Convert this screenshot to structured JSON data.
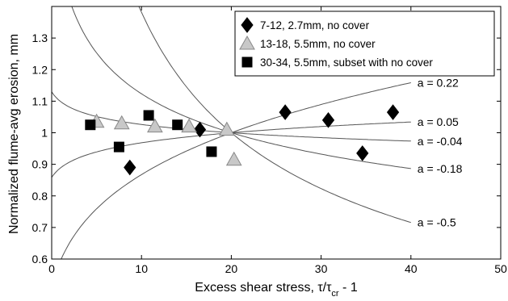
{
  "chart_data": {
    "type": "scatter",
    "xlabel": {
      "main": "Excess shear stress, ",
      "tau": "τ/τ",
      "sub": "cr",
      "tail": " - 1"
    },
    "ylabel": "Normalized flume-avg erosion, mm",
    "xlim": [
      0,
      50
    ],
    "ylim": [
      0.6,
      1.4
    ],
    "xticks": [
      "0",
      "10",
      "20",
      "30",
      "40",
      "50"
    ],
    "yticks": [
      "0.6",
      "0.7",
      "0.8",
      "0.9",
      "1",
      "1.1",
      "1.2",
      "1.3"
    ],
    "grid": false,
    "legend_position": "top-right",
    "series": [
      {
        "name": "7-12, 2.7mm, no cover",
        "marker": "diamond",
        "color": "#000000",
        "points": [
          [
            8.7,
            0.89
          ],
          [
            16.5,
            1.01
          ],
          [
            26,
            1.065
          ],
          [
            30.8,
            1.04
          ],
          [
            34.6,
            0.935
          ],
          [
            38,
            1.065
          ]
        ]
      },
      {
        "name": "13-18, 5.5mm, no cover",
        "marker": "triangle",
        "color": "#c8c8c8",
        "points": [
          [
            5,
            1.035
          ],
          [
            7.8,
            1.03
          ],
          [
            11.5,
            1.02
          ],
          [
            15.3,
            1.02
          ],
          [
            19.5,
            1.01
          ],
          [
            20.3,
            0.915
          ]
        ]
      },
      {
        "name": "30-34, 5.5mm, subset with no cover",
        "marker": "square",
        "color": "#000000",
        "points": [
          [
            4.3,
            1.025
          ],
          [
            7.5,
            0.955
          ],
          [
            10.8,
            1.055
          ],
          [
            14,
            1.025
          ],
          [
            17.8,
            0.94
          ]
        ]
      }
    ],
    "curves": [
      {
        "label": "a = 0.22",
        "a": 0.22
      },
      {
        "label": "a = 0.05",
        "a": 0.05
      },
      {
        "label": "a = -0.04",
        "a": -0.04
      },
      {
        "label": "a = -0.18",
        "a": -0.18
      },
      {
        "label": "a = -0.5",
        "a": -0.5
      }
    ]
  }
}
